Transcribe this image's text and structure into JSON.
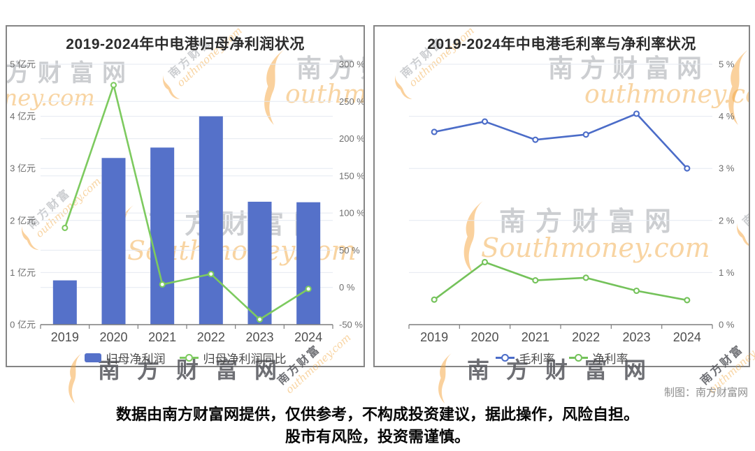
{
  "watermark": {
    "cn": "南方财富网",
    "cn_short": "南方财富",
    "latin": "Southmoney.com",
    "latin_mid": "outhmoney.com",
    "latin_short": "money.com"
  },
  "chart_data": [
    {
      "type": "bar+line",
      "title": "2019-2024年中电港归母净利润状况",
      "categories": [
        "2019",
        "2020",
        "2021",
        "2022",
        "2023",
        "2024"
      ],
      "xlabel": "",
      "legend_position": "bottom",
      "grid": true,
      "y_left": {
        "min": 0,
        "max": 5,
        "unit": "亿元",
        "labels": [
          "0 亿元",
          "1 亿元",
          "2 亿元",
          "3 亿元",
          "4 亿元",
          "5 亿元"
        ]
      },
      "y_right": {
        "min": -50,
        "max": 300,
        "unit": "%",
        "labels": [
          "-50 %",
          "0 %",
          "50 %",
          "100 %",
          "150 %",
          "200 %",
          "250 %",
          "300 %"
        ]
      },
      "series": [
        {
          "name": "归母净利润",
          "type": "bar",
          "axis": "left",
          "unit": "亿元",
          "color": "#5571c9",
          "values": [
            0.85,
            3.2,
            3.4,
            4.0,
            2.36,
            2.35
          ]
        },
        {
          "name": "归母净利润同比",
          "type": "line",
          "axis": "right",
          "unit": "%",
          "color": "#7dca5f",
          "values": [
            80,
            272,
            4,
            18,
            -43,
            -2
          ]
        }
      ]
    },
    {
      "type": "line",
      "title": "2019-2024年中电港毛利率与净利率状况",
      "categories": [
        "2019",
        "2020",
        "2021",
        "2022",
        "2023",
        "2024"
      ],
      "xlabel": "",
      "legend_position": "bottom",
      "grid": true,
      "y_right": {
        "min": 0,
        "max": 5,
        "unit": "%",
        "labels": [
          "0 %",
          "1 %",
          "2 %",
          "3 %",
          "4 %",
          "5 %"
        ]
      },
      "series": [
        {
          "name": "毛利率",
          "type": "line",
          "axis": "right",
          "unit": "%",
          "color": "#4b6cc8",
          "values": [
            3.7,
            3.9,
            3.55,
            3.65,
            4.05,
            3.0
          ]
        },
        {
          "name": "净利率",
          "type": "line",
          "axis": "right",
          "unit": "%",
          "color": "#74c25a",
          "values": [
            0.48,
            1.2,
            0.85,
            0.9,
            0.65,
            0.47
          ]
        }
      ]
    }
  ],
  "footer": {
    "credit": "制图：南方财富网"
  },
  "disclaimer": {
    "line1": "数据由南方财富网提供，仅供参考，不构成投资建议，据此操作，风险自担。",
    "line2": "股市有风险，投资需谨慎。"
  }
}
